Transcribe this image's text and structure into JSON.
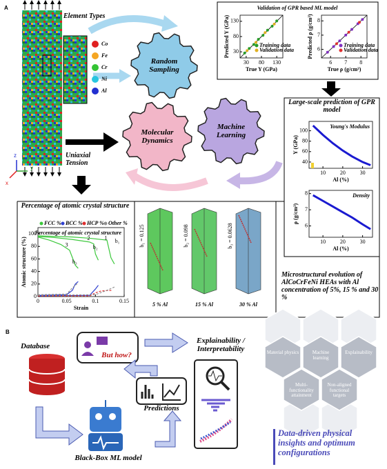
{
  "panel_a": {
    "label": "A",
    "element_types": {
      "title": "Element Types",
      "items": [
        {
          "name": "Co",
          "color": "#e02020"
        },
        {
          "name": "Fe",
          "color": "#f5a623"
        },
        {
          "name": "Cr",
          "color": "#35c435"
        },
        {
          "name": "Ni",
          "color": "#29c6e0"
        },
        {
          "name": "Al",
          "color": "#2230d0"
        }
      ]
    },
    "axis_letters": [
      "z",
      "y",
      "x"
    ],
    "tension_label": "Uniaxial Tension",
    "gears": [
      "Random Sampling",
      "Molecular Dynamics",
      "Machine Learning"
    ],
    "validation": {
      "title": "Validation of GPR based ML model",
      "plots": [
        {
          "type": "scatter",
          "xlabel": "True Y (GPa)",
          "ylabel": "Predicted Y (GPa)",
          "xlim": [
            10,
            150
          ],
          "ylim": [
            10,
            150
          ],
          "xticks": [
            30,
            80,
            130
          ],
          "yticks": [
            30,
            80,
            130
          ],
          "series": [
            {
              "name": "Training data",
              "color": "#2a9d2a",
              "x": [
                25,
                40,
                55,
                70,
                85,
                100,
                115,
                130
              ],
              "values": [
                26,
                41,
                54,
                71,
                84,
                101,
                114,
                131
              ]
            },
            {
              "name": "Validation data",
              "color": "#e0b020",
              "x": [
                33,
                62,
                92,
                122
              ],
              "values": [
                34,
                61,
                93,
                121
              ]
            }
          ]
        },
        {
          "type": "scatter",
          "xlabel": "True ρ (g/cm³)",
          "ylabel": "Predicted ρ (g/cm³)",
          "xlim": [
            5.4,
            8.4
          ],
          "ylim": [
            5.4,
            8.4
          ],
          "xticks": [
            6,
            7,
            8
          ],
          "yticks": [
            6,
            7,
            8
          ],
          "series": [
            {
              "name": "Training data",
              "color": "#8030c0",
              "x": [
                5.8,
                6.2,
                6.6,
                7,
                7.4,
                7.8,
                8.1
              ],
              "values": [
                5.8,
                6.2,
                6.6,
                7,
                7.4,
                7.8,
                8.1
              ]
            },
            {
              "name": "Validation data",
              "color": "#e03030",
              "x": [
                6.4,
                7.2,
                7.9
              ],
              "values": [
                6.4,
                7.2,
                7.9
              ]
            }
          ]
        }
      ]
    },
    "prediction": {
      "title": "Large-scale prediction of GPR model",
      "plots": [
        {
          "type": "line",
          "title": "Young's Modulus",
          "xlabel": "Al (%)",
          "ylabel": "Y (GPa)",
          "xlim": [
            3,
            35
          ],
          "ylim": [
            28,
            118
          ],
          "xticks": [
            10,
            20,
            30
          ],
          "yticks": [
            40,
            60,
            80,
            100
          ],
          "series": [
            {
              "color": "#1a1ad0",
              "x": [
                5,
                10,
                15,
                20,
                25,
                30,
                34
              ],
              "values": [
                110,
                92,
                76,
                62,
                50,
                40,
                34
              ]
            }
          ]
        },
        {
          "type": "line",
          "title": "Density",
          "xlabel": "Al (%)",
          "ylabel": "ρ (g/cm³)",
          "xlim": [
            3,
            35
          ],
          "ylim": [
            5.3,
            8.2
          ],
          "xticks": [
            10,
            20,
            30
          ],
          "yticks": [
            6,
            7,
            8
          ],
          "series": [
            {
              "color": "#1a1ad0",
              "x": [
                5,
                10,
                15,
                20,
                25,
                30,
                34
              ],
              "values": [
                7.9,
                7.55,
                7.2,
                6.85,
                6.5,
                6.1,
                5.8
              ]
            }
          ]
        }
      ]
    },
    "crystal": {
      "title": "Percentage of atomic crystal structure",
      "type": "line",
      "xlabel": "Strain",
      "ylabel": "Atomic structure (%)",
      "xlim": [
        0,
        0.15
      ],
      "ylim": [
        0,
        110
      ],
      "xticks": [
        0,
        0.05,
        0.1,
        0.15
      ],
      "yticks": [
        0,
        20,
        40,
        60,
        80,
        100
      ],
      "series": [
        {
          "name": "FCC %",
          "color": "#3cc83c",
          "curves": [
            {
              "x": [
                0,
                0.03,
                0.06,
                0.09,
                0.12,
                0.127,
                0.133
              ],
              "values": [
                97,
                96,
                95,
                93,
                90,
                62,
                52
              ]
            },
            {
              "x": [
                0,
                0.03,
                0.06,
                0.09,
                0.097,
                0.1,
                0.105
              ],
              "values": [
                96,
                94,
                91,
                87,
                84,
                68,
                58
              ]
            },
            {
              "x": [
                0,
                0.02,
                0.04,
                0.055,
                0.06,
                0.065,
                0.07
              ],
              "values": [
                95,
                90,
                83,
                74,
                62,
                50,
                45
              ]
            }
          ]
        },
        {
          "name": "BCC %",
          "color": "#3040d0",
          "curves": [
            {
              "x": [
                0,
                0.05,
                0.06,
                0.065,
                0.07
              ],
              "values": [
                2,
                3,
                10,
                20,
                24
              ]
            },
            {
              "x": [
                0,
                0.09,
                0.1,
                0.105
              ],
              "values": [
                1,
                2,
                12,
                18
              ]
            }
          ]
        },
        {
          "name": "HCP %",
          "color": "#e03030",
          "curves": [
            {
              "x": [
                0,
                0.09,
                0.1,
                0.11,
                0.13
              ],
              "values": [
                1,
                1,
                6,
                9,
                10
              ]
            }
          ]
        },
        {
          "name": "Other %",
          "color": "#909090",
          "curves": [
            {
              "x": [
                0,
                0.05,
                0.06,
                0.07
              ],
              "values": [
                3,
                4,
                14,
                22
              ]
            },
            {
              "x": [
                0,
                0.1,
                0.12,
                0.135
              ],
              "values": [
                2,
                3,
                10,
                16
              ]
            }
          ]
        }
      ],
      "annotations": [
        "b₁",
        "b₂",
        "b₃",
        "1",
        "2",
        "3"
      ]
    },
    "microstructure": {
      "panels": [
        {
          "b": "b₁ = 0.125",
          "caption": "5 % Al"
        },
        {
          "b": "b₂ = 0.098",
          "caption": "15 % Al"
        },
        {
          "b": "b₃ = 0.0628",
          "caption": "30 % Al"
        }
      ],
      "description": "Microstructural evolution of AlCoCrFeNi HEAs with Al concentration of 5%, 15 % and 30 %"
    }
  },
  "panel_b": {
    "label": "B",
    "database": "Database",
    "question": "But how?",
    "explain": "Explainability / Interpretability",
    "predictions": "Predictions",
    "model": "Black-Box ML model",
    "hexagons": [
      "Material physics",
      "Machine learning",
      "Explainability",
      "Multi-functionality attainment",
      "Non-aligned functional targets"
    ],
    "insight": "Data-driven physical insights and optimum configurations"
  }
}
